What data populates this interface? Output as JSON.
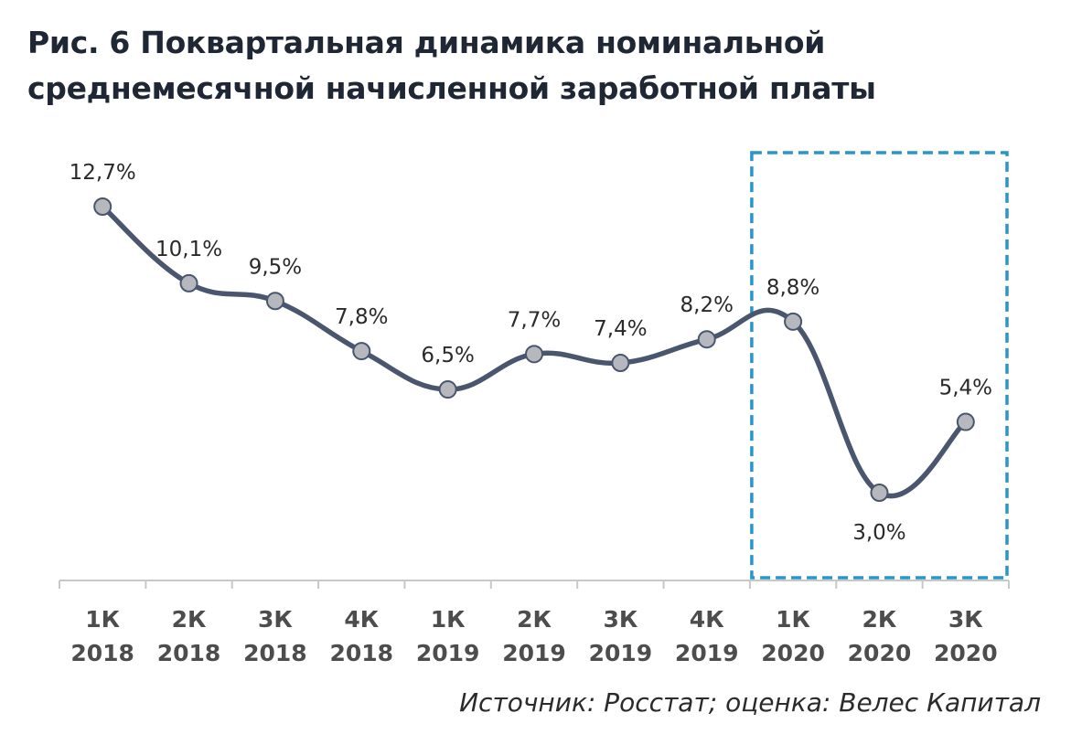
{
  "title": {
    "line1": "Рис. 6 Поквартальная динамика номинальной",
    "line2": "среднемесячной начисленной заработной платы"
  },
  "source": "Источник: Росстат; оценка: Велес Капитал",
  "colors": {
    "line": "#4a566e",
    "marker_fill": "#b7b8bd",
    "marker_stroke": "#4a566e",
    "highlight_box": "#2a95c9",
    "axis": "#c8c8c8"
  },
  "chart_data": {
    "type": "line",
    "categories": [
      [
        "1К",
        "2018"
      ],
      [
        "2К",
        "2018"
      ],
      [
        "3К",
        "2018"
      ],
      [
        "4К",
        "2018"
      ],
      [
        "1К",
        "2019"
      ],
      [
        "2К",
        "2019"
      ],
      [
        "3К",
        "2019"
      ],
      [
        "4К",
        "2019"
      ],
      [
        "1К",
        "2020"
      ],
      [
        "2К",
        "2020"
      ],
      [
        "3К",
        "2020"
      ]
    ],
    "values": [
      12.7,
      10.1,
      9.5,
      7.8,
      6.5,
      7.7,
      7.4,
      8.2,
      8.8,
      3.0,
      5.4
    ],
    "data_labels": [
      "12,7%",
      "10,1%",
      "9,5%",
      "7,8%",
      "6,5%",
      "7,7%",
      "7,4%",
      "8,2%",
      "8,8%",
      "3,0%",
      "5,4%"
    ],
    "label_below": [
      false,
      false,
      false,
      false,
      false,
      false,
      false,
      false,
      false,
      true,
      false
    ],
    "smooth": true,
    "highlight_categories": [
      8,
      10
    ],
    "grid": false,
    "legend": "none"
  }
}
